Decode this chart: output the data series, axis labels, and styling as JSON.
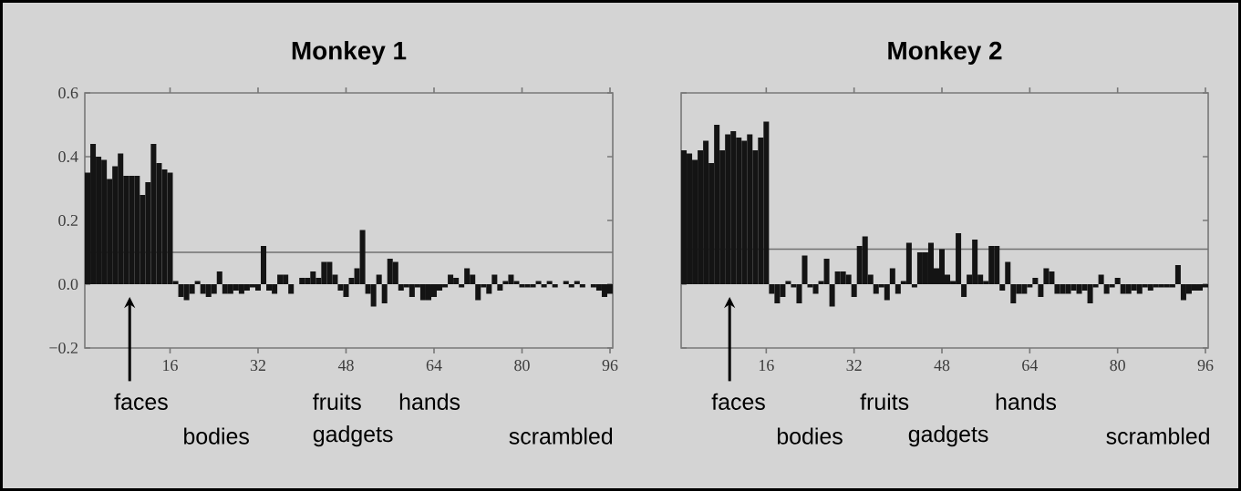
{
  "chart_data": [
    {
      "type": "bar",
      "title": "Monkey 1",
      "x": [
        1,
        2,
        3,
        4,
        5,
        6,
        7,
        8,
        9,
        10,
        11,
        12,
        13,
        14,
        15,
        16,
        17,
        18,
        19,
        20,
        21,
        22,
        23,
        24,
        25,
        26,
        27,
        28,
        29,
        30,
        31,
        32,
        33,
        34,
        35,
        36,
        37,
        38,
        39,
        40,
        41,
        42,
        43,
        44,
        45,
        46,
        47,
        48,
        49,
        50,
        51,
        52,
        53,
        54,
        55,
        56,
        57,
        58,
        59,
        60,
        61,
        62,
        63,
        64,
        65,
        66,
        67,
        68,
        69,
        70,
        71,
        72,
        73,
        74,
        75,
        76,
        77,
        78,
        79,
        80,
        81,
        82,
        83,
        84,
        85,
        86,
        87,
        88,
        89,
        90,
        91,
        92,
        93,
        94,
        95,
        96
      ],
      "values": [
        0.35,
        0.44,
        0.4,
        0.39,
        0.33,
        0.37,
        0.41,
        0.34,
        0.34,
        0.34,
        0.28,
        0.32,
        0.44,
        0.38,
        0.36,
        0.35,
        0.01,
        -0.04,
        -0.05,
        -0.03,
        0.01,
        -0.03,
        -0.04,
        -0.03,
        0.04,
        -0.03,
        -0.03,
        -0.02,
        -0.03,
        -0.02,
        -0.01,
        -0.02,
        0.12,
        -0.02,
        -0.03,
        0.03,
        0.03,
        -0.03,
        0.0,
        0.02,
        0.02,
        0.04,
        0.02,
        0.07,
        0.07,
        0.03,
        -0.02,
        -0.04,
        0.02,
        0.05,
        0.17,
        -0.03,
        -0.07,
        0.03,
        -0.06,
        0.08,
        0.07,
        -0.02,
        -0.01,
        -0.04,
        -0.01,
        -0.05,
        -0.05,
        -0.04,
        -0.02,
        -0.01,
        0.03,
        0.02,
        -0.01,
        0.05,
        0.03,
        -0.05,
        -0.01,
        -0.03,
        0.03,
        -0.02,
        0.01,
        0.03,
        0.01,
        -0.01,
        -0.01,
        -0.01,
        0.01,
        -0.01,
        0.01,
        -0.01,
        0.0,
        0.01,
        -0.01,
        0.01,
        -0.01,
        0.0,
        -0.01,
        -0.02,
        -0.04,
        -0.03
      ],
      "color": "#141414",
      "xlim": [
        0.5,
        96.5
      ],
      "ylim": [
        -0.2,
        0.6
      ],
      "xticks": [
        16,
        32,
        48,
        64,
        80,
        96
      ],
      "yticks": [
        {
          "value": -0.2,
          "label": "−0.2"
        },
        {
          "value": 0,
          "label": "0.0"
        },
        {
          "value": 0.2,
          "label": "0.2"
        },
        {
          "value": 0.4,
          "label": "0.4"
        },
        {
          "value": 0.6,
          "label": "0.6"
        }
      ],
      "ref_lines": [
        {
          "axis": "y",
          "value": 0.1,
          "color": "#707070"
        }
      ],
      "annotations": [
        "faces",
        "bodies",
        "fruits",
        "gadgets",
        "hands",
        "scrambled"
      ]
    },
    {
      "type": "bar",
      "title": "Monkey 2",
      "x": [
        1,
        2,
        3,
        4,
        5,
        6,
        7,
        8,
        9,
        10,
        11,
        12,
        13,
        14,
        15,
        16,
        17,
        18,
        19,
        20,
        21,
        22,
        23,
        24,
        25,
        26,
        27,
        28,
        29,
        30,
        31,
        32,
        33,
        34,
        35,
        36,
        37,
        38,
        39,
        40,
        41,
        42,
        43,
        44,
        45,
        46,
        47,
        48,
        49,
        50,
        51,
        52,
        53,
        54,
        55,
        56,
        57,
        58,
        59,
        60,
        61,
        62,
        63,
        64,
        65,
        66,
        67,
        68,
        69,
        70,
        71,
        72,
        73,
        74,
        75,
        76,
        77,
        78,
        79,
        80,
        81,
        82,
        83,
        84,
        85,
        86,
        87,
        88,
        89,
        90,
        91,
        92,
        93,
        94,
        95,
        96
      ],
      "values": [
        0.42,
        0.41,
        0.39,
        0.42,
        0.45,
        0.38,
        0.5,
        0.42,
        0.47,
        0.48,
        0.46,
        0.45,
        0.47,
        0.42,
        0.46,
        0.51,
        -0.03,
        -0.06,
        -0.04,
        0.01,
        -0.01,
        -0.06,
        0.09,
        -0.01,
        -0.03,
        0.01,
        0.08,
        -0.07,
        0.04,
        0.04,
        0.03,
        -0.04,
        0.12,
        0.15,
        0.03,
        -0.03,
        -0.01,
        -0.05,
        0.05,
        -0.03,
        0.01,
        0.13,
        -0.01,
        0.1,
        0.1,
        0.13,
        0.05,
        0.11,
        0.03,
        0.01,
        0.16,
        -0.04,
        0.03,
        0.14,
        0.03,
        0.01,
        0.12,
        0.12,
        -0.02,
        0.07,
        -0.06,
        -0.03,
        -0.03,
        -0.01,
        0.02,
        -0.04,
        0.05,
        0.04,
        -0.03,
        -0.03,
        -0.03,
        -0.02,
        -0.03,
        -0.02,
        -0.06,
        -0.01,
        0.03,
        -0.03,
        -0.01,
        0.02,
        -0.03,
        -0.03,
        -0.02,
        -0.03,
        -0.01,
        -0.02,
        -0.01,
        -0.01,
        -0.01,
        -0.01,
        0.06,
        -0.05,
        -0.03,
        -0.02,
        -0.02,
        -0.01
      ],
      "color": "#141414",
      "xlim": [
        0.5,
        96.5
      ],
      "ylim": [
        -0.2,
        0.6
      ],
      "xticks": [
        16,
        32,
        48,
        64,
        80,
        96
      ],
      "yticks": [
        {
          "value": -0.2,
          "label": null
        },
        {
          "value": 0,
          "label": null
        },
        {
          "value": 0.2,
          "label": null
        },
        {
          "value": 0.4,
          "label": null
        },
        {
          "value": 0.6,
          "label": null
        }
      ],
      "tick_labels": "x",
      "ref_lines": [
        {
          "axis": "y",
          "value": 0.11,
          "color": "#707070"
        }
      ],
      "annotations": [
        "faces",
        "bodies",
        "fruits",
        "gadgets",
        "hands",
        "scrambled"
      ]
    }
  ]
}
